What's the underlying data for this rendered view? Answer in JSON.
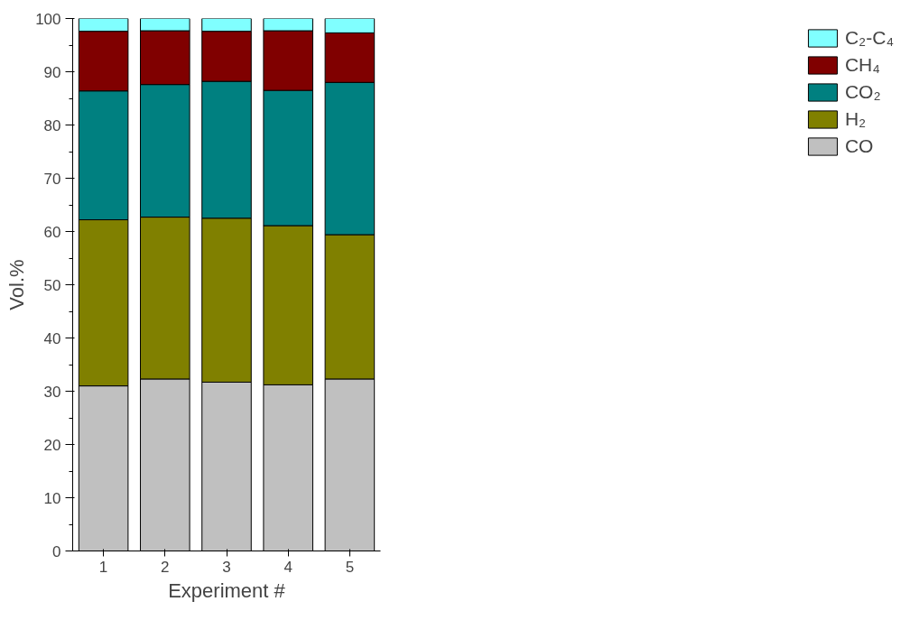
{
  "chart_data": {
    "type": "bar",
    "stacked": true,
    "xlabel": "Experiment #",
    "ylabel": "Vol.%",
    "categories": [
      "1",
      "2",
      "3",
      "4",
      "5"
    ],
    "series": [
      {
        "name": "CO",
        "color": "#c0c0c0",
        "values": [
          31.0,
          32.3,
          31.7,
          31.2,
          32.3
        ]
      },
      {
        "name": "H₂",
        "color": "#808000",
        "values": [
          31.2,
          30.4,
          30.8,
          29.9,
          27.1
        ]
      },
      {
        "name": "CO₂",
        "color": "#008080",
        "values": [
          24.2,
          24.9,
          25.7,
          25.4,
          28.6
        ]
      },
      {
        "name": "CH₄",
        "color": "#800000",
        "values": [
          11.2,
          10.1,
          9.4,
          11.2,
          9.3
        ]
      },
      {
        "name": "C₂-C₄",
        "color": "#80ffff",
        "values": [
          2.4,
          2.3,
          2.4,
          2.3,
          2.7
        ]
      }
    ],
    "ylim": [
      0,
      100
    ],
    "yticks": [
      0,
      10,
      20,
      30,
      40,
      50,
      60,
      70,
      80,
      90,
      100
    ],
    "grid": false,
    "legend": "right"
  }
}
